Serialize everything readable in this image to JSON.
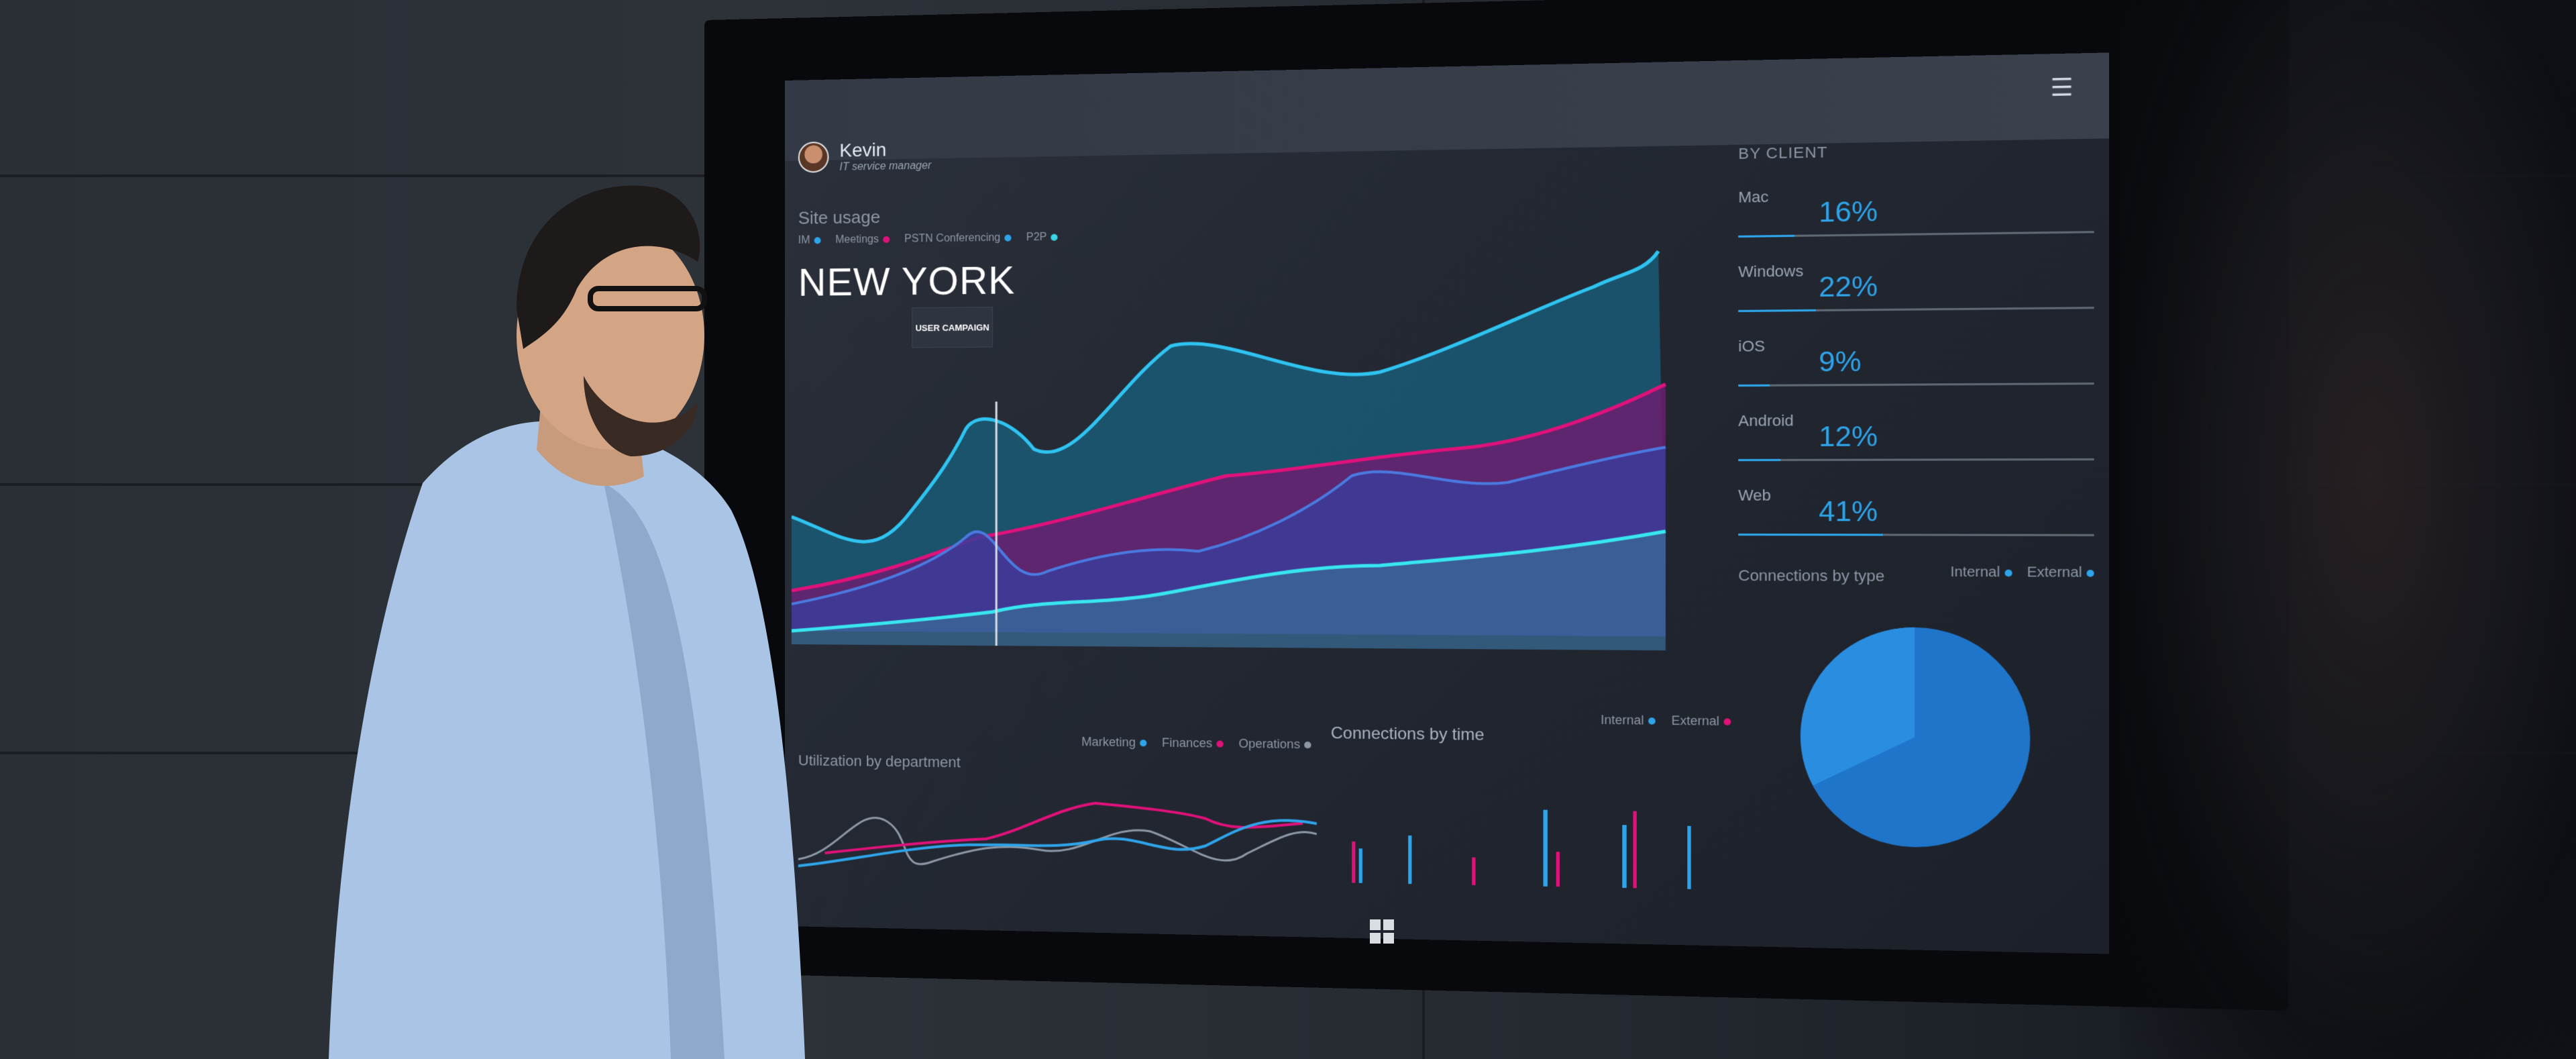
{
  "dashboard": {
    "user": {
      "name": "Kevin",
      "role": "IT service manager"
    },
    "site_label": "Site usage",
    "city": "NEW YORK",
    "legend": [
      {
        "label": "IM",
        "color": "#2ea4ea"
      },
      {
        "label": "Meetings",
        "color": "#e0117a"
      },
      {
        "label": "PSTN Conferencing",
        "color": "#2ea4ea"
      },
      {
        "label": "P2P",
        "color": "#37d6e8"
      }
    ],
    "campaign_label": "USER CAMPAIGN",
    "by_client": {
      "title": "BY CLIENT",
      "items": [
        {
          "name": "Mac",
          "pct": "16%",
          "value": 16
        },
        {
          "name": "Windows",
          "pct": "22%",
          "value": 22
        },
        {
          "name": "iOS",
          "pct": "9%",
          "value": 9
        },
        {
          "name": "Android",
          "pct": "12%",
          "value": 12
        },
        {
          "name": "Web",
          "pct": "41%",
          "value": 41
        }
      ]
    },
    "connections_by_type": {
      "title": "Connections by type",
      "legend": [
        {
          "label": "Internal",
          "color": "#2ea4ea"
        },
        {
          "label": "External",
          "color": "#2ea4ea"
        }
      ]
    },
    "utilization": {
      "title": "Utilization by department",
      "legend": [
        {
          "label": "Marketing",
          "color": "#2ea4ea"
        },
        {
          "label": "Finances",
          "color": "#e0117a"
        },
        {
          "label": "Operations",
          "color": "#8d97a6"
        }
      ]
    },
    "connections_by_time": {
      "title": "Connections by time",
      "legend": [
        {
          "label": "Internal",
          "color": "#2ea4ea"
        },
        {
          "label": "External",
          "color": "#e0117a"
        }
      ]
    }
  },
  "icons": {
    "menu": "menu-icon",
    "windows_logo": "windows-logo-icon"
  }
}
